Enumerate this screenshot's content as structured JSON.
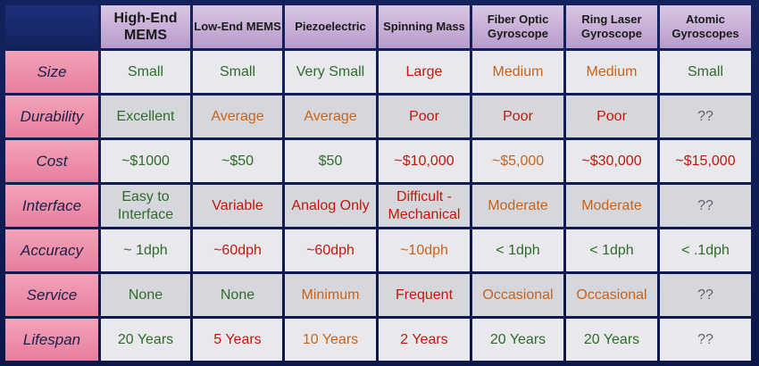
{
  "colors": {
    "green": "#2e6b2a",
    "orange": "#c7631a",
    "red": "#c2180c",
    "gray": "#606068"
  },
  "columns": [
    "High-End MEMS",
    "Low-End MEMS",
    "Piezoelectric",
    "Spinning Mass",
    "Fiber Optic Gyroscope",
    "Ring Laser Gyroscope",
    "Atomic Gyroscopes"
  ],
  "rows": [
    {
      "label": "Size",
      "cells": [
        {
          "text": "Small",
          "color": "green"
        },
        {
          "text": "Small",
          "color": "green"
        },
        {
          "text": "Very Small",
          "color": "green"
        },
        {
          "text": "Large",
          "color": "red"
        },
        {
          "text": "Medium",
          "color": "orange"
        },
        {
          "text": "Medium",
          "color": "orange"
        },
        {
          "text": "Small",
          "color": "green"
        }
      ]
    },
    {
      "label": "Durability",
      "cells": [
        {
          "text": "Excellent",
          "color": "green"
        },
        {
          "text": "Average",
          "color": "orange"
        },
        {
          "text": "Average",
          "color": "orange"
        },
        {
          "text": "Poor",
          "color": "red"
        },
        {
          "text": "Poor",
          "color": "red"
        },
        {
          "text": "Poor",
          "color": "red"
        },
        {
          "text": "??",
          "color": "gray"
        }
      ]
    },
    {
      "label": "Cost",
      "cells": [
        {
          "text": "~$1000",
          "color": "green"
        },
        {
          "text": "~$50",
          "color": "green"
        },
        {
          "text": "$50",
          "color": "green"
        },
        {
          "text": "~$10,000",
          "color": "red"
        },
        {
          "text": "~$5,000",
          "color": "orange"
        },
        {
          "text": "~$30,000",
          "color": "red"
        },
        {
          "text": "~$15,000",
          "color": "red"
        }
      ]
    },
    {
      "label": "Interface",
      "cells": [
        {
          "text": "Easy to Interface",
          "color": "green"
        },
        {
          "text": "Variable",
          "color": "red"
        },
        {
          "text": "Analog Only",
          "color": "red"
        },
        {
          "text": "Difficult - Mechanical",
          "color": "red"
        },
        {
          "text": "Moderate",
          "color": "orange"
        },
        {
          "text": "Moderate",
          "color": "orange"
        },
        {
          "text": "??",
          "color": "gray"
        }
      ]
    },
    {
      "label": "Accuracy",
      "cells": [
        {
          "text": "~ 1dph",
          "color": "green"
        },
        {
          "text": "~60dph",
          "color": "red"
        },
        {
          "text": "~60dph",
          "color": "red"
        },
        {
          "text": "~10dph",
          "color": "orange"
        },
        {
          "text": "< 1dph",
          "color": "green"
        },
        {
          "text": "< 1dph",
          "color": "green"
        },
        {
          "text": "< .1dph",
          "color": "green"
        }
      ]
    },
    {
      "label": "Service",
      "cells": [
        {
          "text": "None",
          "color": "green"
        },
        {
          "text": "None",
          "color": "green"
        },
        {
          "text": "Minimum",
          "color": "orange"
        },
        {
          "text": "Frequent",
          "color": "red"
        },
        {
          "text": "Occasional",
          "color": "orange"
        },
        {
          "text": "Occasional",
          "color": "orange"
        },
        {
          "text": "??",
          "color": "gray"
        }
      ]
    },
    {
      "label": "Lifespan",
      "cells": [
        {
          "text": "20 Years",
          "color": "green"
        },
        {
          "text": "5 Years",
          "color": "red"
        },
        {
          "text": "10 Years",
          "color": "orange"
        },
        {
          "text": "2 Years",
          "color": "red"
        },
        {
          "text": "20 Years",
          "color": "green"
        },
        {
          "text": "20 Years",
          "color": "green"
        },
        {
          "text": "??",
          "color": "gray"
        }
      ]
    }
  ]
}
